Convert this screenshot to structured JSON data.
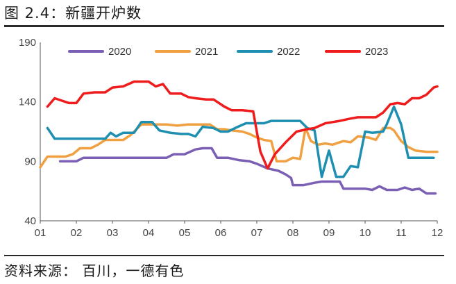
{
  "header": {
    "title": "图 2.4：新疆开炉数"
  },
  "footer": {
    "source": "资料来源：  百川，一德有色"
  },
  "chart_data": {
    "type": "line",
    "title": "新疆开炉数",
    "xlabel": "",
    "ylabel": "",
    "ylim": [
      40,
      190
    ],
    "yticks": [
      40,
      90,
      140,
      190
    ],
    "xlim": [
      1,
      12
    ],
    "xticks": [
      "01",
      "02",
      "03",
      "04",
      "05",
      "06",
      "07",
      "08",
      "09",
      "10",
      "11",
      "12"
    ],
    "legend_position": "top",
    "series": [
      {
        "name": "2020",
        "color": "#7b5fb5",
        "points": [
          [
            1.55,
            90
          ],
          [
            2.0,
            90
          ],
          [
            2.2,
            93
          ],
          [
            2.6,
            93
          ],
          [
            3.0,
            93
          ],
          [
            3.5,
            93
          ],
          [
            4.0,
            93
          ],
          [
            4.5,
            93
          ],
          [
            4.7,
            96
          ],
          [
            5.0,
            96
          ],
          [
            5.3,
            100
          ],
          [
            5.5,
            101
          ],
          [
            5.75,
            101
          ],
          [
            5.9,
            93
          ],
          [
            6.2,
            93
          ],
          [
            6.5,
            91
          ],
          [
            6.8,
            90
          ],
          [
            7.0,
            88
          ],
          [
            7.3,
            84
          ],
          [
            7.6,
            82
          ],
          [
            7.8,
            79
          ],
          [
            7.95,
            76
          ],
          [
            8.0,
            70
          ],
          [
            8.3,
            70
          ],
          [
            8.6,
            72
          ],
          [
            8.8,
            73
          ],
          [
            9.0,
            73
          ],
          [
            9.3,
            73
          ],
          [
            9.4,
            67
          ],
          [
            9.7,
            67
          ],
          [
            10.0,
            67
          ],
          [
            10.2,
            66
          ],
          [
            10.4,
            69
          ],
          [
            10.6,
            66
          ],
          [
            10.9,
            66
          ],
          [
            11.1,
            68
          ],
          [
            11.3,
            66
          ],
          [
            11.5,
            67
          ],
          [
            11.7,
            63
          ],
          [
            11.95,
            63
          ]
        ]
      },
      {
        "name": "2021",
        "color": "#f0a040",
        "points": [
          [
            1.0,
            85
          ],
          [
            1.2,
            94
          ],
          [
            1.5,
            94
          ],
          [
            1.7,
            94
          ],
          [
            1.9,
            96
          ],
          [
            2.1,
            101
          ],
          [
            2.4,
            101
          ],
          [
            2.6,
            104
          ],
          [
            2.8,
            108
          ],
          [
            3.1,
            108
          ],
          [
            3.3,
            108
          ],
          [
            3.5,
            112
          ],
          [
            3.8,
            121
          ],
          [
            4.1,
            121
          ],
          [
            4.5,
            121
          ],
          [
            4.8,
            120
          ],
          [
            5.1,
            121
          ],
          [
            5.4,
            121
          ],
          [
            5.7,
            121
          ],
          [
            5.9,
            117
          ],
          [
            6.1,
            117
          ],
          [
            6.3,
            116
          ],
          [
            6.6,
            115
          ],
          [
            6.8,
            113
          ],
          [
            7.0,
            110
          ],
          [
            7.2,
            108
          ],
          [
            7.4,
            107
          ],
          [
            7.55,
            90
          ],
          [
            7.8,
            90
          ],
          [
            8.0,
            93
          ],
          [
            8.2,
            92
          ],
          [
            8.35,
            118
          ],
          [
            8.5,
            107
          ],
          [
            8.7,
            104
          ],
          [
            8.9,
            105
          ],
          [
            9.1,
            104
          ],
          [
            9.4,
            107
          ],
          [
            9.6,
            106
          ],
          [
            9.8,
            111
          ],
          [
            10.1,
            110
          ],
          [
            10.3,
            108
          ],
          [
            10.5,
            118
          ],
          [
            10.7,
            118
          ],
          [
            10.8,
            116
          ],
          [
            11.0,
            107
          ],
          [
            11.2,
            102
          ],
          [
            11.4,
            99
          ],
          [
            11.7,
            98
          ],
          [
            12.0,
            98
          ]
        ]
      },
      {
        "name": "2022",
        "color": "#1e8fb0",
        "points": [
          [
            1.2,
            118
          ],
          [
            1.4,
            109
          ],
          [
            1.6,
            109
          ],
          [
            1.9,
            109
          ],
          [
            2.2,
            109
          ],
          [
            2.5,
            109
          ],
          [
            2.8,
            109
          ],
          [
            2.95,
            114
          ],
          [
            3.1,
            111
          ],
          [
            3.3,
            114
          ],
          [
            3.6,
            114
          ],
          [
            3.8,
            123
          ],
          [
            4.1,
            123
          ],
          [
            4.3,
            116
          ],
          [
            4.6,
            114
          ],
          [
            4.9,
            113
          ],
          [
            5.1,
            113
          ],
          [
            5.3,
            111
          ],
          [
            5.5,
            119
          ],
          [
            5.8,
            118
          ],
          [
            6.0,
            115
          ],
          [
            6.2,
            115
          ],
          [
            6.4,
            118
          ],
          [
            6.7,
            122
          ],
          [
            7.0,
            122
          ],
          [
            7.2,
            122
          ],
          [
            7.4,
            124
          ],
          [
            7.7,
            124
          ],
          [
            8.0,
            124
          ],
          [
            8.2,
            124
          ],
          [
            8.4,
            118
          ],
          [
            8.6,
            116
          ],
          [
            8.8,
            77
          ],
          [
            9.0,
            99
          ],
          [
            9.2,
            77
          ],
          [
            9.4,
            77
          ],
          [
            9.6,
            86
          ],
          [
            9.8,
            85
          ],
          [
            10.0,
            115
          ],
          [
            10.2,
            114
          ],
          [
            10.5,
            115
          ],
          [
            10.6,
            121
          ],
          [
            10.8,
            136
          ],
          [
            11.0,
            121
          ],
          [
            11.2,
            93
          ],
          [
            11.5,
            93
          ],
          [
            11.9,
            93
          ]
        ]
      },
      {
        "name": "2023",
        "color": "#ee1c1c",
        "points": [
          [
            1.2,
            136
          ],
          [
            1.4,
            143
          ],
          [
            1.6,
            141
          ],
          [
            1.8,
            139
          ],
          [
            2.0,
            139
          ],
          [
            2.2,
            147
          ],
          [
            2.5,
            148
          ],
          [
            2.8,
            148
          ],
          [
            3.0,
            152
          ],
          [
            3.3,
            153
          ],
          [
            3.6,
            157
          ],
          [
            4.0,
            157
          ],
          [
            4.2,
            153
          ],
          [
            4.4,
            155
          ],
          [
            4.6,
            147
          ],
          [
            4.9,
            147
          ],
          [
            5.1,
            144
          ],
          [
            5.3,
            143
          ],
          [
            5.6,
            142
          ],
          [
            5.8,
            142
          ],
          [
            6.1,
            136
          ],
          [
            6.3,
            133
          ],
          [
            6.6,
            133
          ],
          [
            6.9,
            132
          ],
          [
            7.1,
            98
          ],
          [
            7.3,
            84
          ],
          [
            7.5,
            96
          ],
          [
            7.8,
            106
          ],
          [
            8.1,
            115
          ],
          [
            8.4,
            117
          ],
          [
            8.6,
            118
          ],
          [
            8.9,
            122
          ],
          [
            9.1,
            123
          ],
          [
            9.3,
            124
          ],
          [
            9.6,
            126
          ],
          [
            9.8,
            127
          ],
          [
            10.0,
            127
          ],
          [
            10.3,
            127
          ],
          [
            10.5,
            131
          ],
          [
            10.7,
            138
          ],
          [
            10.9,
            139
          ],
          [
            11.1,
            138
          ],
          [
            11.3,
            143
          ],
          [
            11.5,
            143
          ],
          [
            11.7,
            146
          ],
          [
            11.9,
            152
          ],
          [
            12.0,
            153
          ]
        ]
      }
    ]
  }
}
